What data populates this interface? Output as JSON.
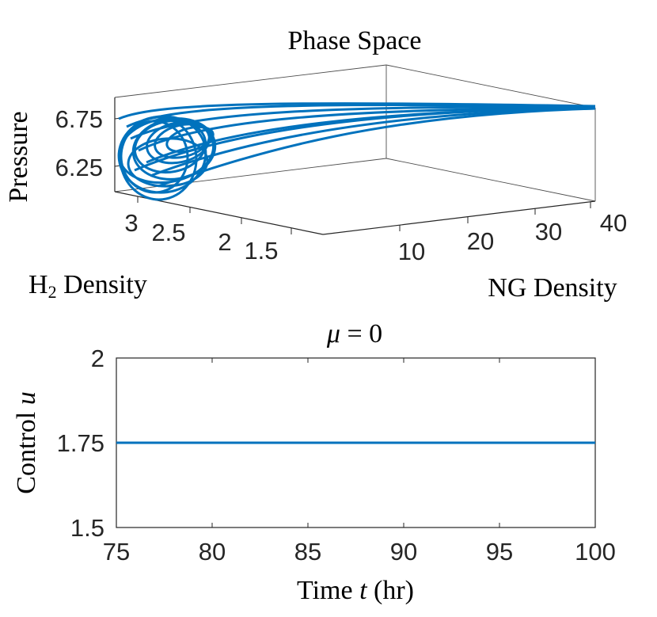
{
  "chart_data": [
    {
      "type": "line",
      "projection": "3d",
      "title": "Phase Space",
      "xlabel_prefix": "H",
      "xlabel_sub": "2",
      "xlabel_suffix": " Density",
      "ylabel": "NG Density",
      "zlabel": "Pressure",
      "x_ticks": [
        "3",
        "2.5",
        "2",
        "1.5"
      ],
      "y_ticks": [
        "10",
        "20",
        "30",
        "40"
      ],
      "z_ticks": [
        "6.75",
        "6.25"
      ],
      "color": "#0072BD",
      "description_of_curve": "trajectory spiralling into a limit cycle near H2 density 2.5-3, NG density ~2-5, pressure 6.1-6.8, after a transient from NG density ~40",
      "series": [
        {
          "transient": {
            "x": [
              2.5,
              2.6,
              2.7,
              2.8,
              2.9
            ],
            "y": [
              40,
              30,
              20,
              12,
              6
            ],
            "z": [
              6.78,
              6.78,
              6.78,
              6.77,
              6.76
            ]
          }
        }
      ]
    },
    {
      "type": "line",
      "title_symbol": "μ",
      "title_rest": " = 0",
      "xlabel_prefix": "Time ",
      "xlabel_var": "t",
      "xlabel_suffix": " (hr)",
      "ylabel_prefix": "Control ",
      "ylabel_var": "u",
      "xlim": [
        75,
        100
      ],
      "ylim": [
        1.5,
        2
      ],
      "x_ticks": [
        "75",
        "80",
        "85",
        "90",
        "95",
        "100"
      ],
      "y_ticks": [
        "2",
        "1.75",
        "1.5"
      ],
      "x_tick_values": [
        75,
        80,
        85,
        90,
        95,
        100
      ],
      "y_tick_values": [
        2,
        1.75,
        1.5
      ],
      "color": "#0072BD",
      "series": [
        {
          "x": [
            75,
            100
          ],
          "y": [
            1.75,
            1.75
          ]
        }
      ]
    }
  ]
}
